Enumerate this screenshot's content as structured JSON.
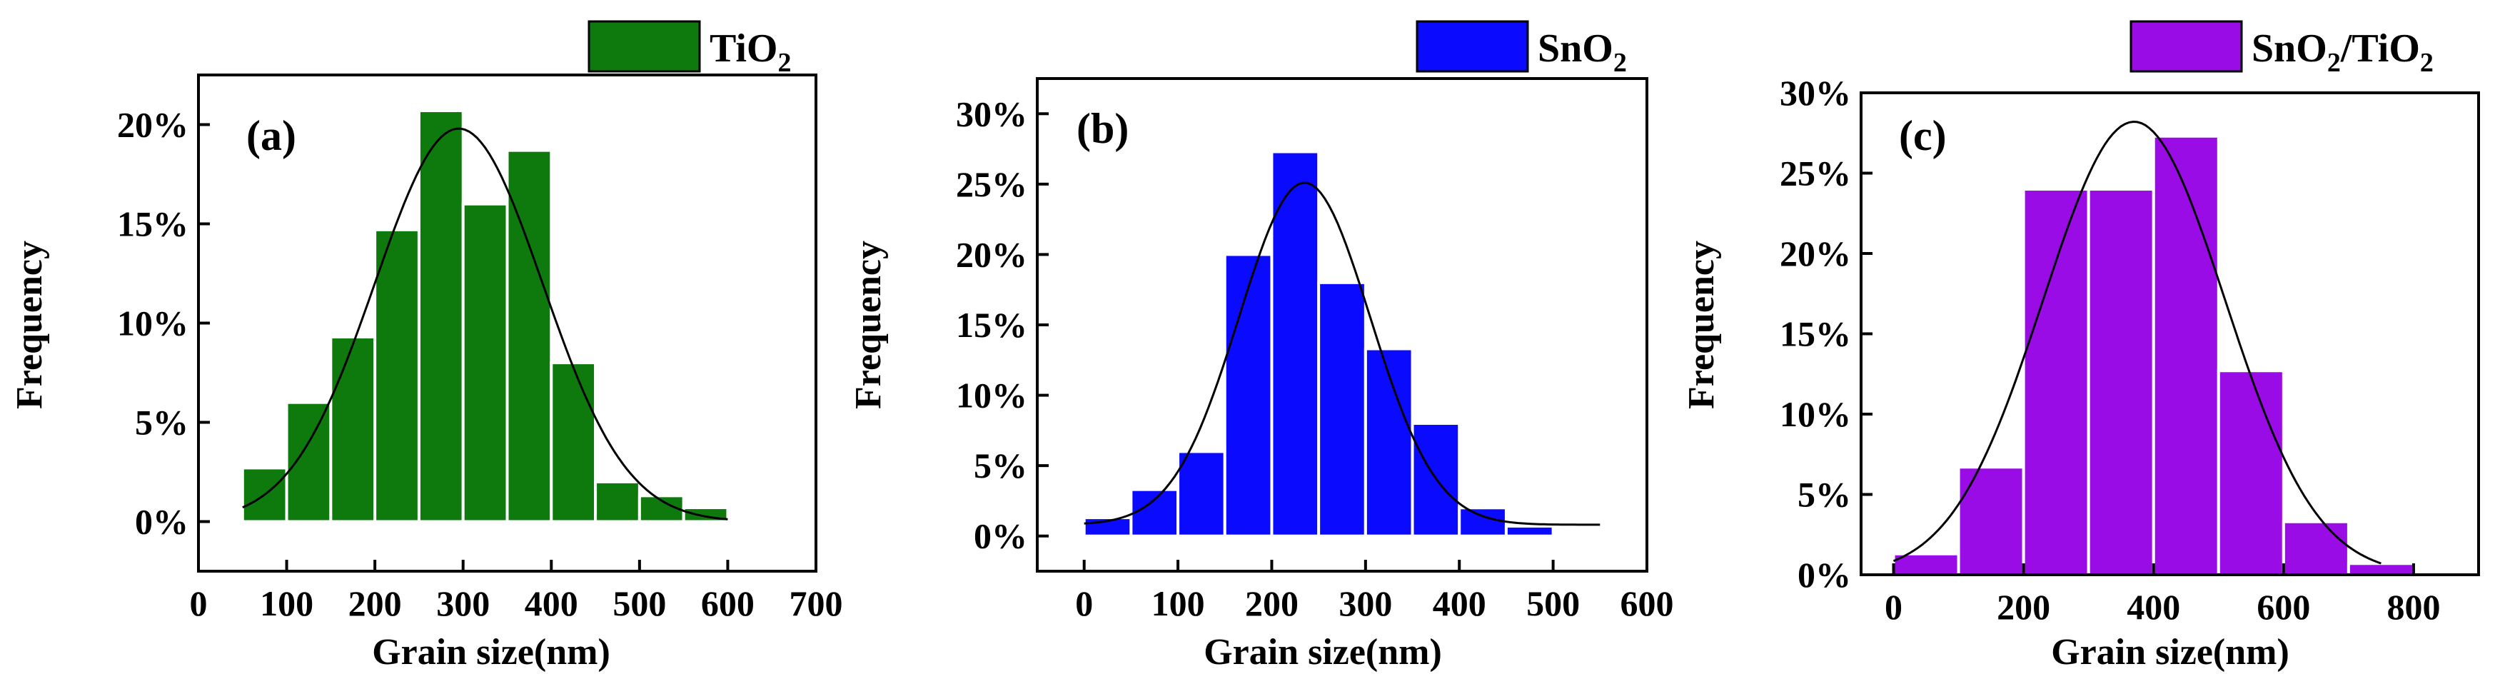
{
  "chart_data": [
    {
      "type": "bar",
      "panel_label": "(a)",
      "legend": {
        "label": "TiO",
        "subscript": "2",
        "color": "#0e7a0e"
      },
      "xlabel": "Grain size(nm)",
      "ylabel": "Frequency",
      "xlim": [
        0,
        700
      ],
      "ylim": [
        -2.5,
        22.5
      ],
      "xticks": [
        "0",
        "100",
        "200",
        "300",
        "400",
        "500",
        "600",
        "700"
      ],
      "yticks": [
        "0%",
        "5%",
        "10%",
        "15%",
        "20%"
      ],
      "bin_width": 50,
      "bins": [
        50,
        100,
        150,
        200,
        250,
        300,
        350,
        400,
        450,
        500,
        550
      ],
      "values": [
        2.7,
        6.0,
        9.3,
        14.7,
        20.7,
        16.0,
        18.7,
        8.0,
        2.0,
        1.3,
        0.7
      ],
      "fit_curve": {
        "type": "gaussian",
        "mean": 295,
        "sd": 95,
        "peak": 19.8,
        "offset": 0,
        "x_range": [
          50,
          600
        ]
      }
    },
    {
      "type": "bar",
      "panel_label": "(b)",
      "legend": {
        "label": "SnO",
        "subscript": "2",
        "color": "#0a0aff"
      },
      "xlabel": "Grain size(nm)",
      "ylabel": "Frequency",
      "xlim": [
        -50,
        600
      ],
      "ylim": [
        -2.5,
        32.5
      ],
      "xticks": [
        "0",
        "100",
        "200",
        "300",
        "400",
        "500",
        "600"
      ],
      "yticks": [
        "0%",
        "5%",
        "10%",
        "15%",
        "20%",
        "25%",
        "30%"
      ],
      "bin_width": 50,
      "bins": [
        0,
        50,
        100,
        150,
        200,
        250,
        300,
        350,
        400,
        450,
        500
      ],
      "values": [
        1.3,
        3.3,
        6.0,
        20.0,
        27.3,
        18.0,
        13.3,
        8.0,
        2.0,
        0.7,
        0.0
      ],
      "fit_curve": {
        "type": "gaussian",
        "mean": 235,
        "sd": 70,
        "peak": 24.3,
        "offset": 0.8,
        "x_range": [
          0,
          550
        ]
      }
    },
    {
      "type": "bar",
      "panel_label": "(c)",
      "legend": {
        "label": "SnO",
        "subscript": "2",
        "suffix": "/TiO",
        "suffix_subscript": "2",
        "color": "#9a0ce6"
      },
      "xlabel": "Grain size(nm)",
      "ylabel": "Frequency",
      "xlim": [
        -50,
        900
      ],
      "ylim": [
        0,
        30
      ],
      "xticks": [
        "0",
        "200",
        "400",
        "600",
        "800"
      ],
      "yticks": [
        "0%",
        "5%",
        "10%",
        "15%",
        "20%",
        "25%",
        "30%"
      ],
      "bin_width": 100,
      "bins": [
        0,
        100,
        200,
        300,
        400,
        500,
        600,
        700
      ],
      "values": [
        1.3,
        6.7,
        24.0,
        24.0,
        27.3,
        12.7,
        3.3,
        0.7
      ],
      "fit_curve": {
        "type": "gaussian",
        "mean": 370,
        "sd": 140,
        "peak": 28.2,
        "offset": 0,
        "x_range": [
          0,
          750
        ]
      }
    }
  ]
}
